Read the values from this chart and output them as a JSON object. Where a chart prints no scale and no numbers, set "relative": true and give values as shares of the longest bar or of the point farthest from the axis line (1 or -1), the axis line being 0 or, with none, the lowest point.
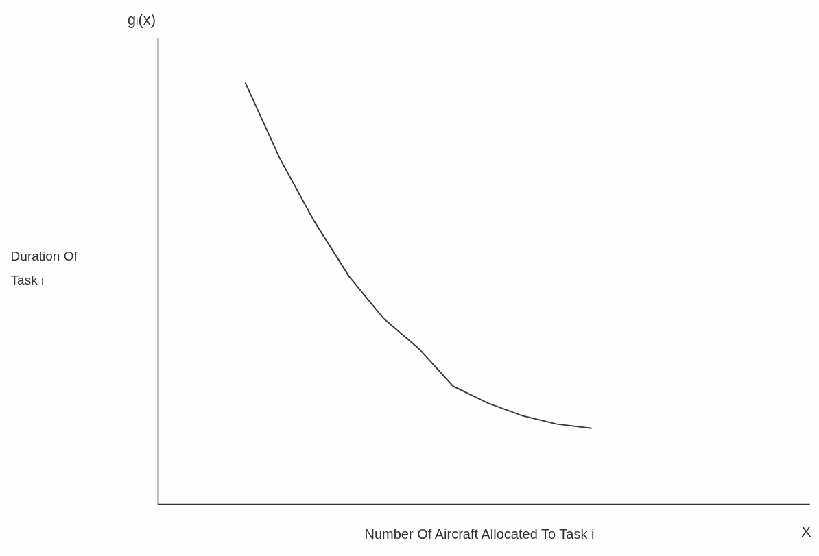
{
  "chart_data": {
    "type": "line",
    "relative": true,
    "xlabel": "Number Of Aircraft Allocated To Task i",
    "annotations": [
      "gᵢ(x)",
      "X",
      "Duration Of\nTask i"
    ],
    "categories": [
      null,
      null,
      null,
      null,
      null,
      null,
      null,
      null,
      null,
      null,
      null
    ],
    "series": [
      {
        "color": "#3a3a3a",
        "values": [
          1,
          0.82,
          0.67,
          0.54,
          0.44,
          0.37,
          0.28,
          0.24,
          0.21,
          0.19,
          0.18
        ]
      }
    ],
    "grid": false,
    "marker": "none",
    "line_style": "solid"
  }
}
